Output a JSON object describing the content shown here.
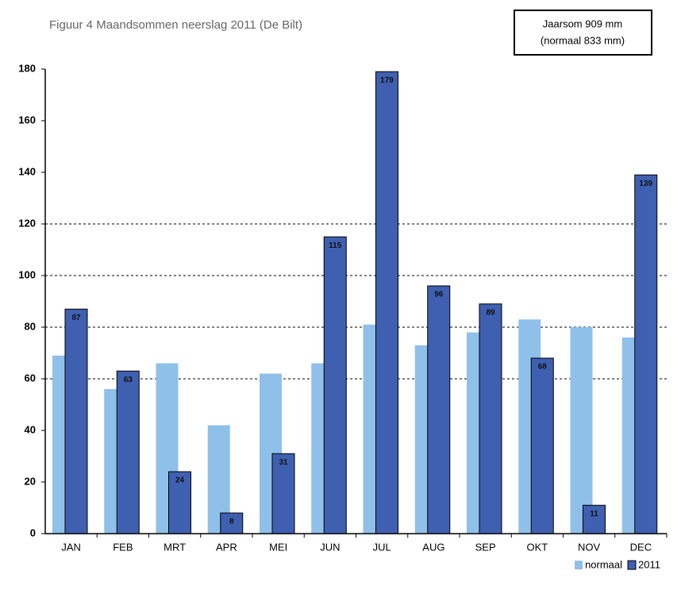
{
  "chart_data": {
    "type": "bar",
    "title": "Figuur 4 Maandsommen neerslag 2011 (De Bilt)",
    "annotations": [
      "Jaarsom 909 mm",
      "(normaal 833 mm)"
    ],
    "categories": [
      "JAN",
      "FEB",
      "MRT",
      "APR",
      "MEI",
      "JUN",
      "JUL",
      "AUG",
      "SEP",
      "OKT",
      "NOV",
      "DEC"
    ],
    "series": [
      {
        "name": "normaal",
        "color": "#8fc0ea",
        "values": [
          69,
          56,
          66,
          42,
          62,
          66,
          81,
          73,
          78,
          83,
          80,
          76
        ]
      },
      {
        "name": "2011",
        "color": "#3f5fb0",
        "values": [
          87,
          63,
          24,
          8,
          31,
          115,
          179,
          96,
          89,
          68,
          11,
          139
        ],
        "labels": true
      }
    ],
    "ylim": [
      0,
      180
    ],
    "yticks": [
      0,
      20,
      40,
      60,
      80,
      100,
      120,
      140,
      160,
      180
    ],
    "gridlines": [
      60,
      80,
      100,
      120
    ],
    "legend": "bottom-right"
  }
}
